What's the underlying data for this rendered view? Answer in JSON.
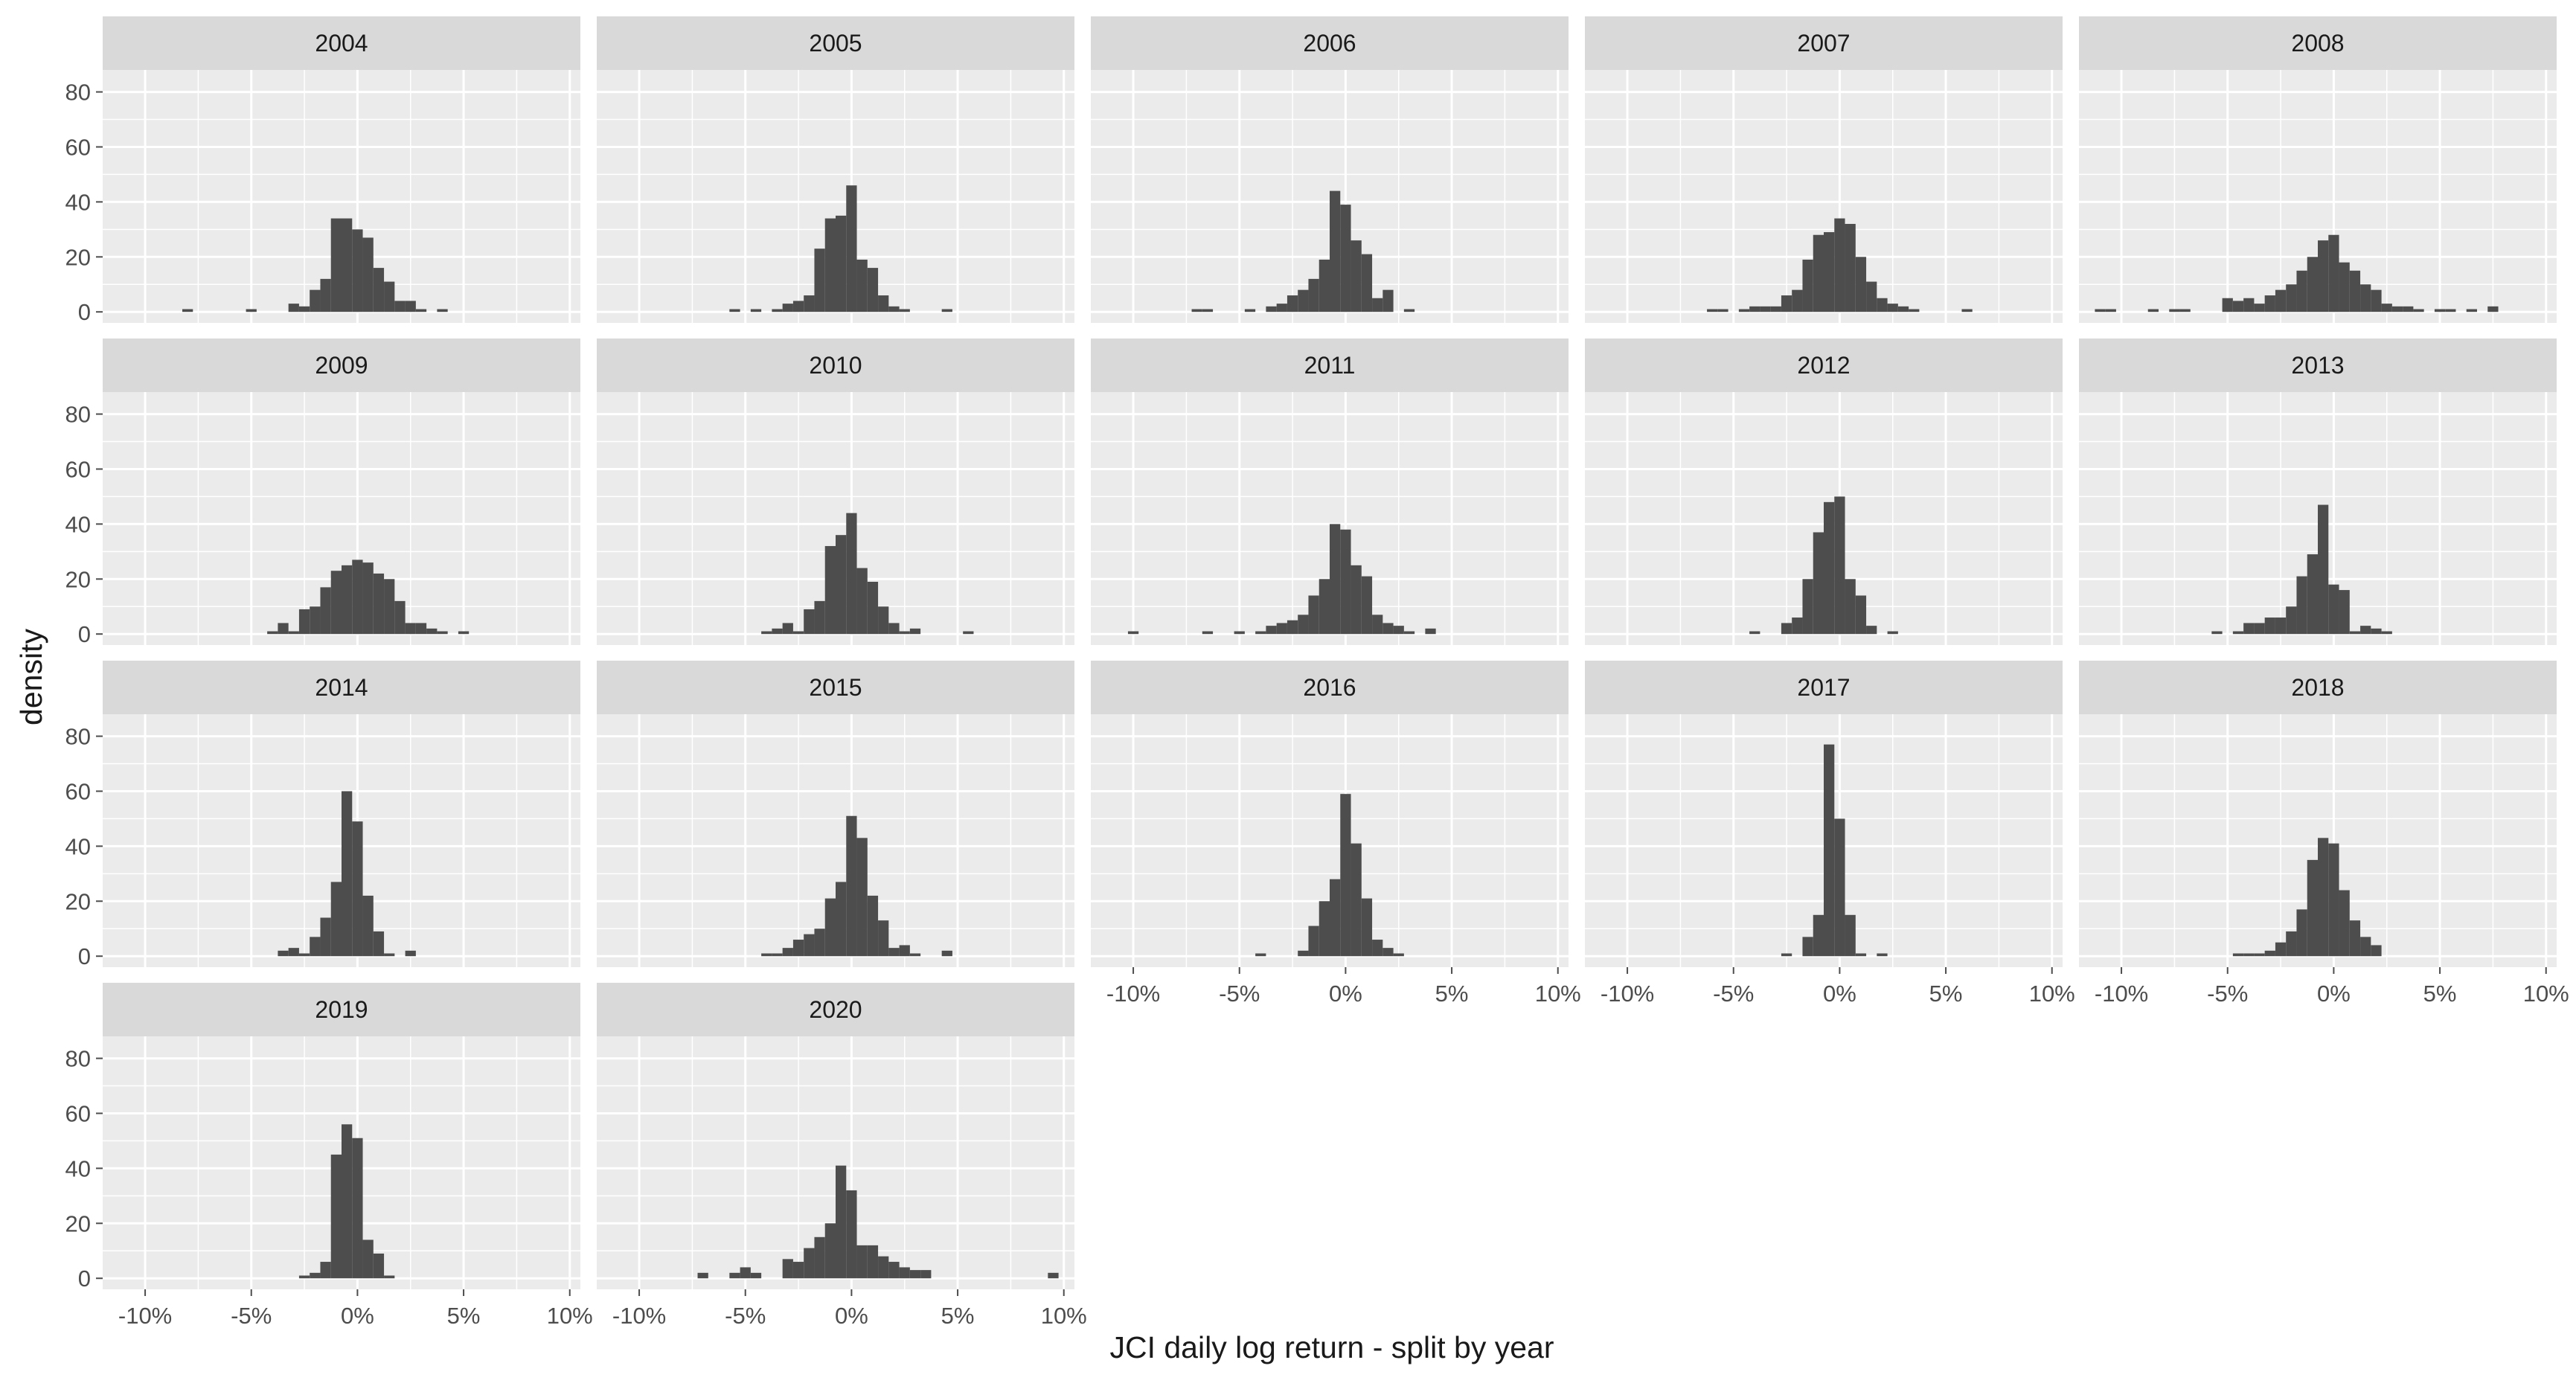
{
  "colors": {
    "panel_bg": "#ebebeb",
    "strip_bg": "#d9d9d9",
    "grid": "#ffffff",
    "bar_fill": "#4d4d4d",
    "text": "#1a1a1a",
    "tick_text": "#4d4d4d"
  },
  "chart_data": {
    "type": "bar",
    "title": "",
    "xlabel": "JCI daily log return - split by year",
    "ylabel": "density",
    "xlim": [
      -12,
      10.5
    ],
    "ylim": [
      -4,
      88
    ],
    "x_ticks": [
      -10,
      -5,
      0,
      5,
      10
    ],
    "x_tick_labels": [
      "-10%",
      "-5%",
      "0%",
      "5%",
      "10%"
    ],
    "y_ticks": [
      0,
      20,
      40,
      60,
      80
    ],
    "y_tick_labels": [
      "0",
      "20",
      "40",
      "60",
      "80"
    ],
    "bin_width": 0.5,
    "facets": [
      {
        "label": "2004",
        "bars": [
          [
            -8,
            1
          ],
          [
            -5,
            1
          ],
          [
            -3,
            3
          ],
          [
            -2.5,
            2
          ],
          [
            -2,
            8
          ],
          [
            -1.5,
            12
          ],
          [
            -1,
            34
          ],
          [
            -0.5,
            34
          ],
          [
            0,
            30
          ],
          [
            0.5,
            27
          ],
          [
            1,
            16
          ],
          [
            1.5,
            11
          ],
          [
            2,
            4
          ],
          [
            2.5,
            4
          ],
          [
            3,
            1
          ],
          [
            4,
            1
          ]
        ]
      },
      {
        "label": "2005",
        "bars": [
          [
            -5.5,
            1
          ],
          [
            -4.5,
            1
          ],
          [
            -3.5,
            1
          ],
          [
            -3,
            3
          ],
          [
            -2.5,
            4
          ],
          [
            -2,
            6
          ],
          [
            -1.5,
            23
          ],
          [
            -1,
            34
          ],
          [
            -0.5,
            35
          ],
          [
            0,
            46
          ],
          [
            0.5,
            19
          ],
          [
            1,
            16
          ],
          [
            1.5,
            6
          ],
          [
            2,
            2
          ],
          [
            2.5,
            1
          ],
          [
            4.5,
            1
          ]
        ]
      },
      {
        "label": "2006",
        "bars": [
          [
            -7,
            1
          ],
          [
            -6.5,
            1
          ],
          [
            -4.5,
            1
          ],
          [
            -3.5,
            2
          ],
          [
            -3,
            3
          ],
          [
            -2.5,
            6
          ],
          [
            -2,
            8
          ],
          [
            -1.5,
            12
          ],
          [
            -1,
            19
          ],
          [
            -0.5,
            44
          ],
          [
            0,
            39
          ],
          [
            0.5,
            26
          ],
          [
            1,
            21
          ],
          [
            1.5,
            5
          ],
          [
            2,
            8
          ],
          [
            3,
            1
          ]
        ]
      },
      {
        "label": "2007",
        "bars": [
          [
            -6,
            1
          ],
          [
            -5.5,
            1
          ],
          [
            -4.5,
            1
          ],
          [
            -4,
            2
          ],
          [
            -3.5,
            2
          ],
          [
            -3,
            2
          ],
          [
            -2.5,
            6
          ],
          [
            -2,
            8
          ],
          [
            -1.5,
            19
          ],
          [
            -1,
            28
          ],
          [
            -0.5,
            29
          ],
          [
            0,
            34
          ],
          [
            0.5,
            32
          ],
          [
            1,
            20
          ],
          [
            1.5,
            11
          ],
          [
            2,
            5
          ],
          [
            2.5,
            3
          ],
          [
            3,
            2
          ],
          [
            3.5,
            1
          ],
          [
            6,
            1
          ]
        ]
      },
      {
        "label": "2008",
        "bars": [
          [
            -11,
            1
          ],
          [
            -10.5,
            1
          ],
          [
            -8.5,
            1
          ],
          [
            -7.5,
            1
          ],
          [
            -7,
            1
          ],
          [
            -5,
            5
          ],
          [
            -4.5,
            4
          ],
          [
            -4,
            5
          ],
          [
            -3.5,
            3
          ],
          [
            -3,
            6
          ],
          [
            -2.5,
            8
          ],
          [
            -2,
            10
          ],
          [
            -1.5,
            15
          ],
          [
            -1,
            20
          ],
          [
            -0.5,
            26
          ],
          [
            0,
            28
          ],
          [
            0.5,
            18
          ],
          [
            1,
            15
          ],
          [
            1.5,
            10
          ],
          [
            2,
            8
          ],
          [
            2.5,
            3
          ],
          [
            3,
            2
          ],
          [
            3.5,
            2
          ],
          [
            4,
            1
          ],
          [
            5,
            1
          ],
          [
            5.5,
            1
          ],
          [
            6.5,
            1
          ],
          [
            7.5,
            2
          ]
        ]
      },
      {
        "label": "2009",
        "bars": [
          [
            -4,
            1
          ],
          [
            -3.5,
            4
          ],
          [
            -3,
            1
          ],
          [
            -2.5,
            9
          ],
          [
            -2,
            10
          ],
          [
            -1.5,
            17
          ],
          [
            -1,
            23
          ],
          [
            -0.5,
            25
          ],
          [
            0,
            27
          ],
          [
            0.5,
            26
          ],
          [
            1,
            22
          ],
          [
            1.5,
            20
          ],
          [
            2,
            12
          ],
          [
            2.5,
            4
          ],
          [
            3,
            4
          ],
          [
            3.5,
            2
          ],
          [
            4,
            1
          ],
          [
            5,
            1
          ]
        ]
      },
      {
        "label": "2010",
        "bars": [
          [
            -4,
            1
          ],
          [
            -3.5,
            2
          ],
          [
            -3,
            4
          ],
          [
            -2.5,
            1
          ],
          [
            -2,
            9
          ],
          [
            -1.5,
            12
          ],
          [
            -1,
            32
          ],
          [
            -0.5,
            36
          ],
          [
            0,
            44
          ],
          [
            0.5,
            24
          ],
          [
            1,
            19
          ],
          [
            1.5,
            10
          ],
          [
            2,
            4
          ],
          [
            2.5,
            1
          ],
          [
            3,
            2
          ],
          [
            5.5,
            1
          ]
        ]
      },
      {
        "label": "2011",
        "bars": [
          [
            -10,
            1
          ],
          [
            -6.5,
            1
          ],
          [
            -5,
            1
          ],
          [
            -4,
            1
          ],
          [
            -3.5,
            3
          ],
          [
            -3,
            4
          ],
          [
            -2.5,
            5
          ],
          [
            -2,
            7
          ],
          [
            -1.5,
            14
          ],
          [
            -1,
            20
          ],
          [
            -0.5,
            40
          ],
          [
            0,
            38
          ],
          [
            0.5,
            25
          ],
          [
            1,
            21
          ],
          [
            1.5,
            7
          ],
          [
            2,
            4
          ],
          [
            2.5,
            3
          ],
          [
            3,
            1
          ],
          [
            4,
            2
          ]
        ]
      },
      {
        "label": "2012",
        "bars": [
          [
            -4,
            1
          ],
          [
            -2.5,
            4
          ],
          [
            -2,
            6
          ],
          [
            -1.5,
            20
          ],
          [
            -1,
            37
          ],
          [
            -0.5,
            48
          ],
          [
            0,
            50
          ],
          [
            0.5,
            20
          ],
          [
            1,
            14
          ],
          [
            1.5,
            3
          ],
          [
            2.5,
            1
          ]
        ]
      },
      {
        "label": "2013",
        "bars": [
          [
            -5.5,
            1
          ],
          [
            -4.5,
            1
          ],
          [
            -4,
            4
          ],
          [
            -3.5,
            4
          ],
          [
            -3,
            6
          ],
          [
            -2.5,
            6
          ],
          [
            -2,
            10
          ],
          [
            -1.5,
            21
          ],
          [
            -1,
            29
          ],
          [
            -0.5,
            47
          ],
          [
            0,
            18
          ],
          [
            0.5,
            16
          ],
          [
            1,
            1
          ],
          [
            1.5,
            3
          ],
          [
            2,
            2
          ],
          [
            2.5,
            1
          ]
        ]
      },
      {
        "label": "2014",
        "bars": [
          [
            -3.5,
            2
          ],
          [
            -3,
            3
          ],
          [
            -2.5,
            1
          ],
          [
            -2,
            7
          ],
          [
            -1.5,
            14
          ],
          [
            -1,
            27
          ],
          [
            -0.5,
            60
          ],
          [
            0,
            49
          ],
          [
            0.5,
            22
          ],
          [
            1,
            9
          ],
          [
            1.5,
            1
          ],
          [
            2.5,
            2
          ]
        ]
      },
      {
        "label": "2015",
        "bars": [
          [
            -4,
            1
          ],
          [
            -3.5,
            1
          ],
          [
            -3,
            3
          ],
          [
            -2.5,
            6
          ],
          [
            -2,
            8
          ],
          [
            -1.5,
            10
          ],
          [
            -1,
            21
          ],
          [
            -0.5,
            27
          ],
          [
            0,
            51
          ],
          [
            0.5,
            43
          ],
          [
            1,
            22
          ],
          [
            1.5,
            13
          ],
          [
            2,
            3
          ],
          [
            2.5,
            4
          ],
          [
            3,
            1
          ],
          [
            4.5,
            2
          ]
        ]
      },
      {
        "label": "2016",
        "bars": [
          [
            -4,
            1
          ],
          [
            -2,
            2
          ],
          [
            -1.5,
            11
          ],
          [
            -1,
            20
          ],
          [
            -0.5,
            28
          ],
          [
            0,
            59
          ],
          [
            0.5,
            41
          ],
          [
            1,
            21
          ],
          [
            1.5,
            6
          ],
          [
            2,
            3
          ],
          [
            2.5,
            1
          ]
        ]
      },
      {
        "label": "2017",
        "bars": [
          [
            -2.5,
            1
          ],
          [
            -1.5,
            7
          ],
          [
            -1,
            15
          ],
          [
            -0.5,
            77
          ],
          [
            0,
            50
          ],
          [
            0.5,
            15
          ],
          [
            1,
            1
          ],
          [
            2,
            1
          ]
        ]
      },
      {
        "label": "2018",
        "bars": [
          [
            -4.5,
            1
          ],
          [
            -4,
            1
          ],
          [
            -3.5,
            1
          ],
          [
            -3,
            2
          ],
          [
            -2.5,
            5
          ],
          [
            -2,
            9
          ],
          [
            -1.5,
            17
          ],
          [
            -1,
            35
          ],
          [
            -0.5,
            43
          ],
          [
            0,
            41
          ],
          [
            0.5,
            24
          ],
          [
            1,
            13
          ],
          [
            1.5,
            7
          ],
          [
            2,
            4
          ]
        ]
      },
      {
        "label": "2019",
        "bars": [
          [
            -2.5,
            1
          ],
          [
            -2,
            2
          ],
          [
            -1.5,
            6
          ],
          [
            -1,
            45
          ],
          [
            -0.5,
            56
          ],
          [
            0,
            51
          ],
          [
            0.5,
            14
          ],
          [
            1,
            9
          ],
          [
            1.5,
            1
          ]
        ]
      },
      {
        "label": "2020",
        "bars": [
          [
            -7,
            2
          ],
          [
            -5.5,
            2
          ],
          [
            -5,
            4
          ],
          [
            -4.5,
            2
          ],
          [
            -3,
            7
          ],
          [
            -2.5,
            6
          ],
          [
            -2,
            11
          ],
          [
            -1.5,
            15
          ],
          [
            -1,
            20
          ],
          [
            -0.5,
            41
          ],
          [
            0,
            32
          ],
          [
            0.5,
            12
          ],
          [
            1,
            12
          ],
          [
            1.5,
            8
          ],
          [
            2,
            6
          ],
          [
            2.5,
            4
          ],
          [
            3,
            3
          ],
          [
            3.5,
            3
          ],
          [
            9.5,
            2
          ]
        ]
      }
    ]
  }
}
